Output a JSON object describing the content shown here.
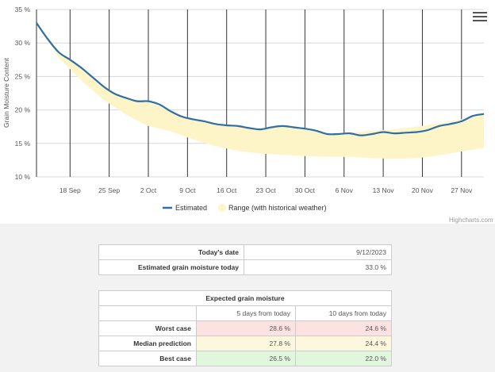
{
  "chart_data": {
    "type": "line",
    "ylabel": "Grain Moisture Content",
    "y_ticks": [
      "10 %",
      "15 %",
      "20 %",
      "25 %",
      "30 %",
      "35 %"
    ],
    "ylim": [
      10,
      35
    ],
    "x_range": [
      "2023-09-12",
      "2023-12-01"
    ],
    "x_ticks": [
      {
        "date": "2023-09-18",
        "label": "18 Sep"
      },
      {
        "date": "2023-09-25",
        "label": "25 Sep"
      },
      {
        "date": "2023-10-02",
        "label": "2 Oct"
      },
      {
        "date": "2023-10-09",
        "label": "9 Oct"
      },
      {
        "date": "2023-10-16",
        "label": "16 Oct"
      },
      {
        "date": "2023-10-23",
        "label": "23 Oct"
      },
      {
        "date": "2023-10-30",
        "label": "30 Oct"
      },
      {
        "date": "2023-11-06",
        "label": "6 Nov"
      },
      {
        "date": "2023-11-13",
        "label": "13 Nov"
      },
      {
        "date": "2023-11-20",
        "label": "20 Nov"
      },
      {
        "date": "2023-11-27",
        "label": "27 Nov"
      }
    ],
    "legend_position": "bottom-center",
    "series": [
      {
        "name": "Estimated",
        "color": "#2f6fa6",
        "points": [
          [
            "2023-09-12",
            33.0
          ],
          [
            "2023-09-14",
            30.6
          ],
          [
            "2023-09-16",
            28.6
          ],
          [
            "2023-09-18",
            27.5
          ],
          [
            "2023-09-20",
            26.3
          ],
          [
            "2023-09-22",
            24.9
          ],
          [
            "2023-09-24",
            23.5
          ],
          [
            "2023-09-26",
            22.4
          ],
          [
            "2023-09-28",
            21.8
          ],
          [
            "2023-09-30",
            21.3
          ],
          [
            "2023-10-02",
            21.3
          ],
          [
            "2023-10-04",
            20.8
          ],
          [
            "2023-10-06",
            19.8
          ],
          [
            "2023-10-08",
            19.0
          ],
          [
            "2023-10-10",
            18.6
          ],
          [
            "2023-10-12",
            18.3
          ],
          [
            "2023-10-14",
            17.9
          ],
          [
            "2023-10-16",
            17.7
          ],
          [
            "2023-10-18",
            17.6
          ],
          [
            "2023-10-20",
            17.3
          ],
          [
            "2023-10-22",
            17.1
          ],
          [
            "2023-10-24",
            17.4
          ],
          [
            "2023-10-26",
            17.6
          ],
          [
            "2023-10-28",
            17.4
          ],
          [
            "2023-10-30",
            17.2
          ],
          [
            "2023-11-01",
            16.9
          ],
          [
            "2023-11-03",
            16.4
          ],
          [
            "2023-11-05",
            16.4
          ],
          [
            "2023-11-07",
            16.5
          ],
          [
            "2023-11-09",
            16.2
          ],
          [
            "2023-11-11",
            16.4
          ],
          [
            "2023-11-13",
            16.7
          ],
          [
            "2023-11-15",
            16.5
          ],
          [
            "2023-11-17",
            16.6
          ],
          [
            "2023-11-19",
            16.7
          ],
          [
            "2023-11-21",
            17.0
          ],
          [
            "2023-11-23",
            17.6
          ],
          [
            "2023-11-25",
            17.9
          ],
          [
            "2023-11-27",
            18.3
          ],
          [
            "2023-11-29",
            19.1
          ],
          [
            "2023-12-01",
            19.4
          ]
        ]
      },
      {
        "name": "Range (with historical weather)",
        "color": "#fdf5c7",
        "range": [
          [
            "2023-09-12",
            33.0,
            33.0
          ],
          [
            "2023-09-16",
            27.8,
            28.6
          ],
          [
            "2023-09-20",
            24.4,
            26.3
          ],
          [
            "2023-09-24",
            21.5,
            23.5
          ],
          [
            "2023-09-28",
            19.3,
            21.8
          ],
          [
            "2023-10-02",
            17.6,
            21.3
          ],
          [
            "2023-10-06",
            16.8,
            19.8
          ],
          [
            "2023-10-10",
            15.6,
            18.6
          ],
          [
            "2023-10-14",
            14.6,
            17.9
          ],
          [
            "2023-10-18",
            13.9,
            17.6
          ],
          [
            "2023-10-22",
            13.5,
            17.1
          ],
          [
            "2023-10-26",
            13.3,
            17.6
          ],
          [
            "2023-10-30",
            13.1,
            17.2
          ],
          [
            "2023-11-03",
            13.0,
            16.4
          ],
          [
            "2023-11-07",
            13.0,
            16.6
          ],
          [
            "2023-11-11",
            12.8,
            16.9
          ],
          [
            "2023-11-15",
            12.7,
            17.1
          ],
          [
            "2023-11-19",
            12.8,
            17.5
          ],
          [
            "2023-11-23",
            13.2,
            18.0
          ],
          [
            "2023-11-27",
            13.8,
            18.6
          ],
          [
            "2023-12-01",
            14.3,
            19.4
          ]
        ]
      }
    ],
    "credits": "Highcharts.com"
  },
  "info": {
    "today_label": "Today's date",
    "today_value": "9/12/2023",
    "estimated_label": "Estimated grain moisture today",
    "estimated_value": "33.0 %"
  },
  "expected": {
    "title": "Expected grain moisture",
    "col5": "5 days from today",
    "col10": "10 days from today",
    "rows": [
      {
        "label": "Worst case",
        "v5": "28.6 %",
        "v10": "24.6 %"
      },
      {
        "label": "Median prediction",
        "v5": "27.8 %",
        "v10": "24.4 %"
      },
      {
        "label": "Best case",
        "v5": "26.5 %",
        "v10": "22.0 %"
      }
    ]
  }
}
